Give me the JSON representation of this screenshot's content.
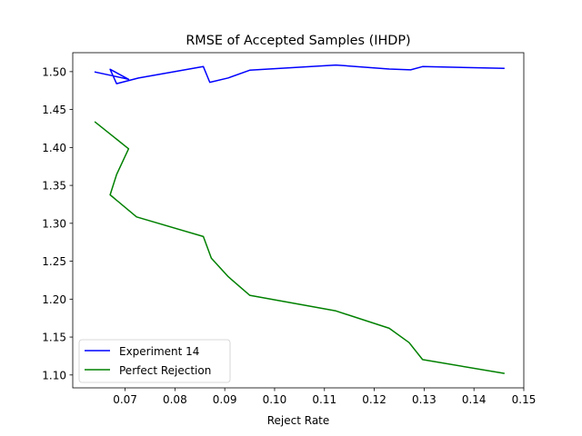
{
  "chart_data": {
    "type": "line",
    "title": "RMSE of Accepted Samples (IHDP)",
    "xlabel": "Reject Rate",
    "ylabel": "",
    "xlim": [
      0.0595,
      0.15
    ],
    "ylim": [
      1.083,
      1.525
    ],
    "xticks": [
      0.07,
      0.08,
      0.09,
      0.1,
      0.11,
      0.12,
      0.13,
      0.14,
      0.15
    ],
    "xtick_labels": [
      "0.07",
      "0.08",
      "0.09",
      "0.10",
      "0.11",
      "0.12",
      "0.13",
      "0.14",
      "0.15"
    ],
    "yticks": [
      1.1,
      1.15,
      1.2,
      1.25,
      1.3,
      1.35,
      1.4,
      1.45,
      1.5
    ],
    "ytick_labels": [
      "1.10",
      "1.15",
      "1.20",
      "1.25",
      "1.30",
      "1.35",
      "1.40",
      "1.45",
      "1.50"
    ],
    "grid": false,
    "legend_position": "lower-left",
    "series": [
      {
        "name": "Experiment 14",
        "color": "#0000ff",
        "x": [
          0.064,
          0.0673,
          0.0707,
          0.067,
          0.0683,
          0.0727,
          0.0857,
          0.087,
          0.0907,
          0.095,
          0.1123,
          0.123,
          0.1273,
          0.1297,
          0.146
        ],
        "y": [
          1.4995,
          1.4948,
          1.4899,
          1.5031,
          1.4841,
          1.4916,
          1.5067,
          1.4859,
          1.4917,
          1.5019,
          1.5087,
          1.5034,
          1.5024,
          1.5067,
          1.5044
        ]
      },
      {
        "name": "Perfect Rejection",
        "color": "#008000",
        "x": [
          0.064,
          0.0707,
          0.0683,
          0.067,
          0.0723,
          0.0857,
          0.0873,
          0.0907,
          0.095,
          0.1123,
          0.123,
          0.127,
          0.1297,
          0.146
        ],
        "y": [
          1.4335,
          1.3983,
          1.3643,
          1.3375,
          1.3084,
          1.2825,
          1.2541,
          1.2296,
          1.2051,
          1.1844,
          1.1616,
          1.1426,
          1.1202,
          1.1022
        ]
      }
    ]
  }
}
